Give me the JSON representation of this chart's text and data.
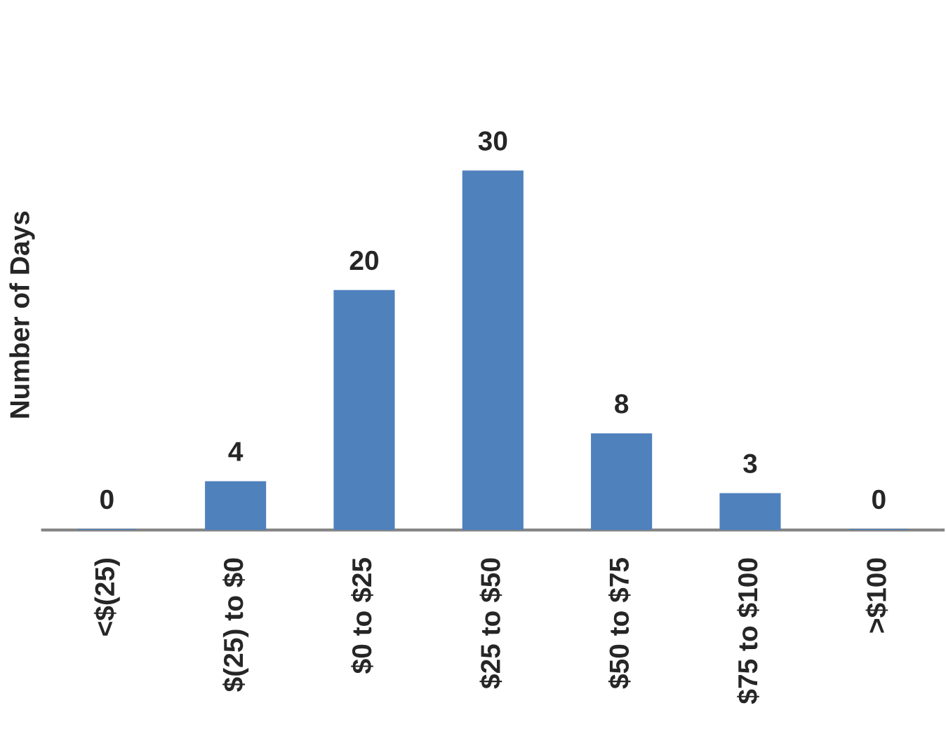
{
  "chart_data": {
    "type": "bar",
    "ylabel": "Number of Days",
    "categories": [
      "<$(25)",
      "$(25) to $0",
      "$0 to $25",
      "$25 to $50",
      "$50 to $75",
      "$75 to $100",
      ">$100"
    ],
    "values": [
      0,
      4,
      20,
      30,
      8,
      3,
      0
    ],
    "color": "#4f81bd",
    "data_labels": true
  }
}
